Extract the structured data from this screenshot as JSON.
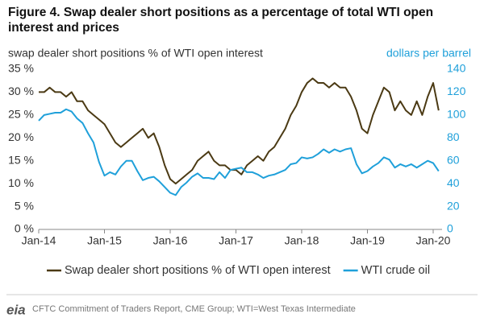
{
  "chart_data": {
    "type": "line",
    "title": "Figure 4. Swap dealer short positions as a percentage of total WTI open interest and prices",
    "y_axis_label": "swap dealer short positions % of WTI open interest",
    "y2_axis_label": "dollars per barrel",
    "categories": [
      "Jan-14",
      null,
      null,
      null,
      null,
      null,
      null,
      null,
      null,
      null,
      null,
      null,
      "Jan-15",
      null,
      null,
      null,
      null,
      null,
      null,
      null,
      null,
      null,
      null,
      null,
      "Jan-16",
      null,
      null,
      null,
      null,
      null,
      null,
      null,
      null,
      null,
      null,
      null,
      "Jan-17",
      null,
      null,
      null,
      null,
      null,
      null,
      null,
      null,
      null,
      null,
      null,
      "Jan-18",
      null,
      null,
      null,
      null,
      null,
      null,
      null,
      null,
      null,
      null,
      null,
      "Jan-19",
      null,
      null,
      null,
      null,
      null,
      null,
      null,
      null,
      null,
      null,
      null,
      "Jan-20",
      null
    ],
    "series": [
      {
        "name": "Swap dealer short positions % of WTI open interest",
        "color": "#4b3a14",
        "values": [
          30,
          30,
          31,
          30,
          30,
          29,
          30,
          28,
          28,
          26,
          25,
          24,
          23,
          21,
          19,
          18,
          19,
          20,
          21,
          22,
          20,
          21,
          18,
          14,
          11,
          10,
          11,
          12,
          13,
          15,
          16,
          17,
          15,
          14,
          14,
          13,
          13,
          12,
          14,
          15,
          16,
          15,
          17,
          18,
          20,
          22,
          25,
          27,
          30,
          32,
          33,
          32,
          32,
          31,
          32,
          31,
          31,
          29,
          26,
          22,
          21,
          25,
          28,
          31,
          30,
          26,
          28,
          26,
          25,
          28,
          25,
          29,
          32,
          26
        ]
      },
      {
        "name": "WTI crude oil",
        "color": "#1fa0da",
        "axis": "y2",
        "values": [
          95,
          100,
          101,
          102,
          102,
          105,
          103,
          97,
          93,
          84,
          76,
          59,
          47,
          50,
          48,
          55,
          60,
          60,
          51,
          43,
          45,
          46,
          42,
          37,
          32,
          30,
          37,
          41,
          46,
          49,
          45,
          45,
          44,
          50,
          45,
          52,
          53,
          54,
          50,
          50,
          48,
          45,
          47,
          48,
          50,
          52,
          57,
          58,
          63,
          62,
          63,
          66,
          70,
          67,
          70,
          68,
          70,
          71,
          57,
          49,
          51,
          55,
          58,
          63,
          61,
          54,
          57,
          55,
          57,
          54,
          57,
          60,
          58,
          51
        ]
      }
    ],
    "ylim": [
      0,
      35
    ],
    "yticks": [
      {
        "value": 0,
        "label": "0 %"
      },
      {
        "value": 5,
        "label": "5 %"
      },
      {
        "value": 10,
        "label": "10 %"
      },
      {
        "value": 15,
        "label": "15 %"
      },
      {
        "value": 20,
        "label": "20 %"
      },
      {
        "value": 25,
        "label": "25 %"
      },
      {
        "value": 30,
        "label": "30 %"
      },
      {
        "value": 35,
        "label": "35 %"
      }
    ],
    "y2lim": [
      0,
      140
    ],
    "y2ticks": [
      0,
      20,
      40,
      60,
      80,
      100,
      120,
      140
    ],
    "grid": false,
    "legend": "bottom",
    "logo": "eia",
    "source": "CFTC Commitment of Traders Report, CME Group; WTI=West Texas Intermediate"
  }
}
